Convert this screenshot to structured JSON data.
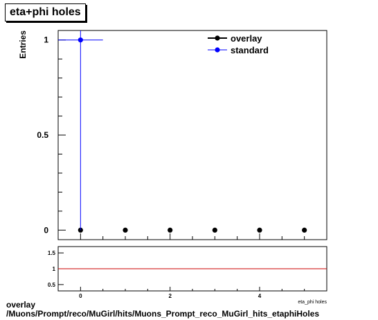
{
  "caption": {
    "line1": "overlay",
    "line2": "/Muons/Prompt/reco/MuGirl/hits/Muons_Prompt_reco_MuGirl_hits_etaphiHoles"
  },
  "chart_data": [
    {
      "type": "scatter",
      "title": "eta+phi holes",
      "ylabel": "Entries",
      "xlabel": "",
      "xlim": [
        -0.5,
        5.5
      ],
      "ylim": [
        -0.05,
        1.05
      ],
      "y_ticks": [
        0,
        0.5,
        1
      ],
      "y_tick_labels": [
        "0",
        "0.5",
        "1"
      ],
      "grid": false,
      "legend_position": "top-right",
      "series": [
        {
          "name": "overlay",
          "color": "#000000",
          "x": [
            0,
            1,
            2,
            3,
            4,
            5
          ],
          "y": [
            0,
            0,
            0,
            0,
            0,
            0
          ]
        },
        {
          "name": "standard",
          "color": "#0000ff",
          "x": [
            0
          ],
          "y": [
            1
          ],
          "xerr": 0.5,
          "yerr": 1
        }
      ]
    },
    {
      "type": "line",
      "title": "",
      "xlabel": "eta_phi holes",
      "ylabel": "",
      "xlim": [
        -0.5,
        5.5
      ],
      "ylim": [
        0.3,
        1.7
      ],
      "x_ticks": [
        0,
        2,
        4
      ],
      "x_tick_labels": [
        "0",
        "2",
        "4"
      ],
      "y_ticks": [
        0.5,
        1,
        1.5
      ],
      "y_tick_labels": [
        "0.5",
        "1",
        "1.5"
      ],
      "reference_line": {
        "y": 1,
        "color": "#cc0000"
      }
    }
  ]
}
